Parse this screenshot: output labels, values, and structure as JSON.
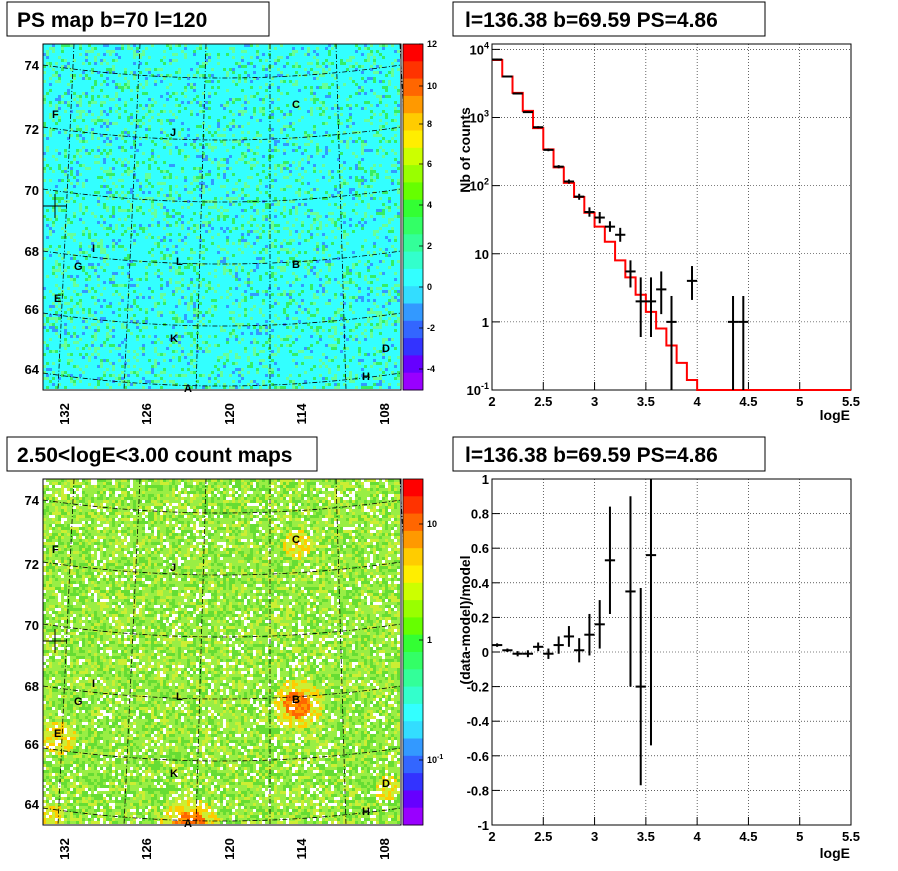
{
  "chart_data": [
    {
      "type": "heatmap",
      "title": "PS map b=70 l=120",
      "x_ticks": [
        "132",
        "126",
        "120",
        "114",
        "108"
      ],
      "y_ticks": [
        "64",
        "66",
        "68",
        "70",
        "72",
        "74"
      ],
      "colorbar_ticks": [
        "12",
        "10",
        "8",
        "6",
        "4",
        "2",
        "0",
        "-2",
        "-4"
      ],
      "colorbar_range": [
        -5,
        12
      ],
      "sources": [
        "A",
        "B",
        "C",
        "D",
        "E",
        "F",
        "G",
        "H",
        "I",
        "J",
        "K",
        "L"
      ],
      "colors": {
        "background": "#33ffff",
        "mid": "#33ee66",
        "low": "#3399ff"
      }
    },
    {
      "type": "line",
      "title": "l=136.38 b=69.59 PS=4.86",
      "xlabel": "logE",
      "ylabel": "Nb of counts",
      "xlim": [
        2,
        5.5
      ],
      "ylim": [
        0.1,
        12000
      ],
      "log_y": true,
      "x_ticks": [
        "2",
        "2.5",
        "3",
        "3.5",
        "4",
        "4.5",
        "5",
        "5.5"
      ],
      "y_ticks": [
        "10^-1",
        "1",
        "10",
        "10^2",
        "10^3",
        "10^4"
      ],
      "grid": true,
      "model": {
        "edges": [
          2.0,
          2.1,
          2.2,
          2.3,
          2.4,
          2.5,
          2.6,
          2.7,
          2.8,
          2.9,
          3.0,
          3.1,
          3.2,
          3.3,
          3.4,
          3.5,
          3.6,
          3.7,
          3.8,
          3.9,
          4.0,
          4.1,
          4.2,
          4.3,
          4.4,
          4.5,
          4.6,
          4.7,
          4.8,
          4.9,
          5.0,
          5.1,
          5.2,
          5.3,
          5.4,
          5.5
        ],
        "values": [
          7000,
          4000,
          2300,
          1250,
          700,
          340,
          185,
          110,
          68,
          40,
          25,
          15,
          8,
          4.5,
          2.5,
          1.4,
          0.8,
          0.45,
          0.25,
          0.14,
          0.1,
          0.1,
          0.1,
          0.1,
          0.1,
          0.1,
          0.1,
          0.1,
          0.1,
          0.1,
          0.1,
          0.1,
          0.1,
          0.1,
          0.1
        ],
        "color": "#ff0000"
      },
      "data": {
        "x": [
          2.05,
          2.15,
          2.25,
          2.35,
          2.45,
          2.55,
          2.65,
          2.75,
          2.85,
          2.95,
          3.05,
          3.15,
          3.25,
          3.35,
          3.45,
          3.55,
          3.65,
          3.75,
          3.95,
          4.35,
          4.45
        ],
        "y": [
          7100,
          4000,
          2250,
          1200,
          720,
          335,
          190,
          115,
          69,
          41,
          34,
          25,
          19,
          5.5,
          2,
          2,
          3,
          1,
          4,
          1,
          1
        ],
        "ylo": [
          6900,
          3900,
          2200,
          1170,
          695,
          320,
          180,
          107,
          62,
          35,
          28,
          21,
          15,
          3.2,
          0.6,
          0.6,
          1.3,
          0.1,
          2.1,
          0.1,
          0.1
        ],
        "yhi": [
          7300,
          4100,
          2300,
          1230,
          745,
          350,
          200,
          123,
          76,
          48,
          41,
          30,
          24,
          8,
          4.5,
          4.5,
          5.5,
          2.4,
          6.6,
          2.4,
          2.4
        ]
      }
    },
    {
      "type": "heatmap",
      "title": "2.50<logE<3.00 count maps",
      "x_ticks": [
        "132",
        "126",
        "120",
        "114",
        "108"
      ],
      "y_ticks": [
        "64",
        "66",
        "68",
        "70",
        "72",
        "74"
      ],
      "colorbar_ticks": [
        "10",
        "1",
        "10^-1"
      ],
      "log_color": true,
      "sources": [
        "A",
        "B",
        "C",
        "D",
        "E",
        "F",
        "G",
        "H",
        "I",
        "J",
        "K",
        "L"
      ],
      "colors": {
        "background": "#99ee44",
        "high": "#ff6600",
        "low": "#ffffff"
      }
    },
    {
      "type": "scatter",
      "title": "l=136.38 b=69.59 PS=4.86",
      "xlabel": "logE",
      "ylabel": "(data-model)/model",
      "xlim": [
        2,
        5.5
      ],
      "ylim": [
        -1,
        1
      ],
      "x_ticks": [
        "2",
        "2.5",
        "3",
        "3.5",
        "4",
        "4.5",
        "5",
        "5.5"
      ],
      "y_ticks": [
        "-1",
        "-0.8",
        "-0.6",
        "-0.4",
        "-0.2",
        "0",
        "0.2",
        "0.4",
        "0.6",
        "0.8",
        "1"
      ],
      "grid": true,
      "data": {
        "x": [
          2.05,
          2.15,
          2.25,
          2.35,
          2.45,
          2.55,
          2.65,
          2.75,
          2.85,
          2.95,
          3.05,
          3.15,
          3.35,
          3.45,
          3.55
        ],
        "y": [
          0.04,
          0.01,
          -0.01,
          -0.01,
          0.03,
          -0.01,
          0.04,
          0.09,
          0.01,
          0.1,
          0.16,
          0.53,
          0.35,
          -0.2,
          0.56
        ],
        "err": [
          0.01,
          0.01,
          0.015,
          0.02,
          0.025,
          0.03,
          0.05,
          0.06,
          0.07,
          0.12,
          0.14,
          0.31,
          0.55,
          0.57,
          1.1
        ]
      }
    }
  ],
  "labels": {
    "x_axis": "logE",
    "ylabel_top": "Nb of counts",
    "ylabel_bottom": "(data-model)/model"
  }
}
